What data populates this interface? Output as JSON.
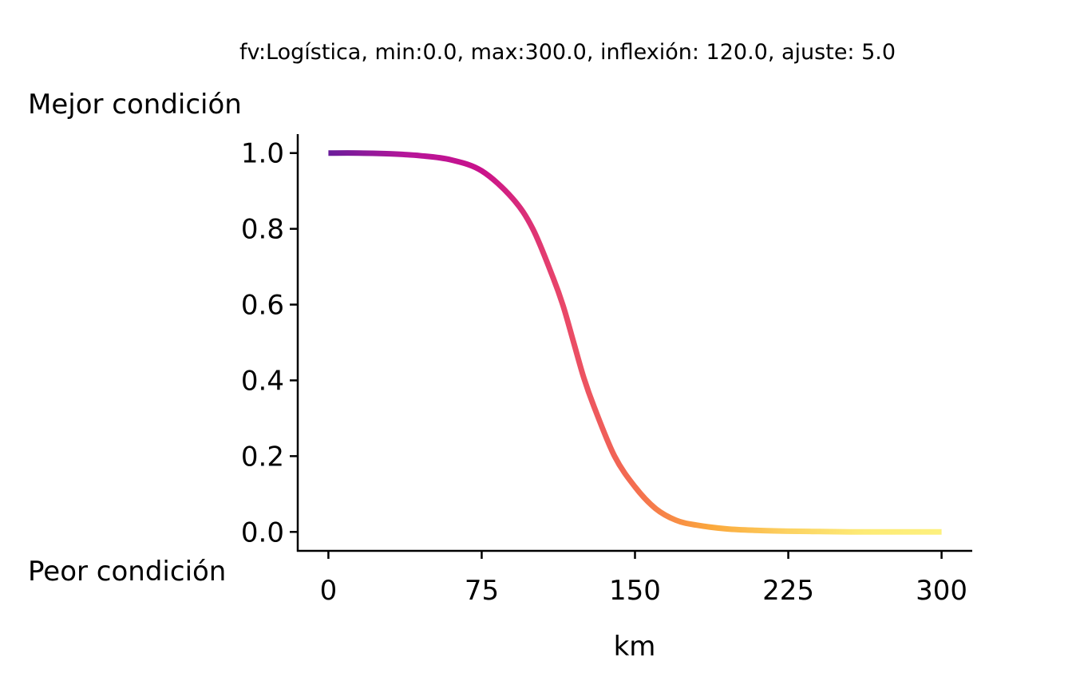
{
  "chart_data": {
    "type": "line",
    "title": "fv:Logística, min:0.0, max:300.0, inflexión: 120.0, ajuste: 5.0",
    "xlabel": "km",
    "ylabel_top": "Mejor condición",
    "ylabel_bottom": "Peor condición",
    "xlim": [
      -15,
      315
    ],
    "ylim": [
      -0.05,
      1.05
    ],
    "xticks": [
      0,
      75,
      150,
      225,
      300
    ],
    "xtick_labels": [
      "0",
      "75",
      "150",
      "225",
      "300"
    ],
    "yticks": [
      0.0,
      0.2,
      0.4,
      0.6,
      0.8,
      1.0
    ],
    "ytick_labels": [
      "0.0",
      "0.2",
      "0.4",
      "0.6",
      "0.8",
      "1.0"
    ],
    "grid": false,
    "colormap": "plasma",
    "series": [
      {
        "x": [
          0,
          15,
          30,
          45,
          60,
          75,
          90,
          100,
          110,
          115,
          120,
          125,
          130,
          140,
          150,
          160,
          170,
          180,
          195,
          210,
          225,
          240,
          255,
          270,
          285,
          300
        ],
        "y": [
          1.0,
          1.0,
          0.998,
          0.993,
          0.982,
          0.953,
          0.881,
          0.8,
          0.67,
          0.594,
          0.5,
          0.406,
          0.33,
          0.2,
          0.119,
          0.062,
          0.031,
          0.018,
          0.008,
          0.004,
          0.002,
          0.001,
          0.0,
          0.0,
          0.0,
          0.0
        ]
      }
    ],
    "line_colors": [
      "#6a1c9a",
      "#b5169a",
      "#c9118b",
      "#e8456a",
      "#f46e4f",
      "#fba83c",
      "#fcd262",
      "#fdeb76",
      "#fdf07e"
    ]
  }
}
